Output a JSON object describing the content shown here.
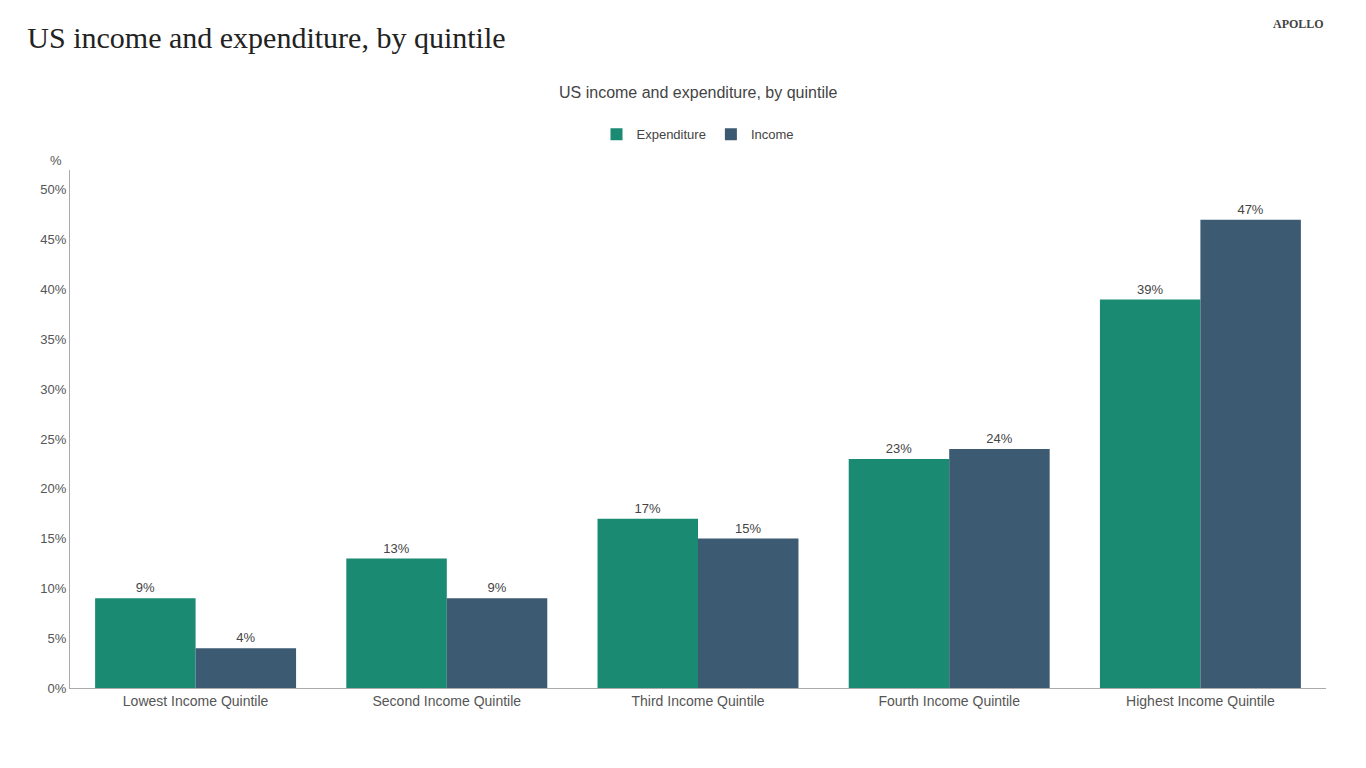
{
  "chart_data": {
    "type": "bar",
    "title": "US income and expenditure, by quintile",
    "subtitle": "US income and expenditure, by quintile",
    "annotations": [
      "APOLLO"
    ],
    "ylabel": "%",
    "categories": [
      "Lowest Income Quintile",
      "Second Income Quintile",
      "Third Income Quintile",
      "Fourth Income Quintile",
      "Highest Income Quintile"
    ],
    "series": [
      {
        "name": "Expenditure",
        "color": "#1a8a72",
        "values": [
          9,
          13,
          17,
          23,
          39
        ],
        "value_labels": [
          "9%",
          "13%",
          "17%",
          "23%",
          "39%"
        ]
      },
      {
        "name": "Income",
        "color": "#3d5a73",
        "values": [
          4,
          9,
          15,
          24,
          47
        ],
        "value_labels": [
          "4%",
          "9%",
          "15%",
          "24%",
          "47%"
        ]
      }
    ],
    "ylim": [
      0,
      52
    ],
    "yticks": [
      {
        "value": 0,
        "label": "0%"
      },
      {
        "value": 5,
        "label": "5%"
      },
      {
        "value": 10,
        "label": "10%"
      },
      {
        "value": 15,
        "label": "15%"
      },
      {
        "value": 20,
        "label": "20%"
      },
      {
        "value": 25,
        "label": "25%"
      },
      {
        "value": 30,
        "label": "30%"
      },
      {
        "value": 35,
        "label": "35%"
      },
      {
        "value": 40,
        "label": "40%"
      },
      {
        "value": 45,
        "label": "45%"
      },
      {
        "value": 50,
        "label": "50%"
      }
    ],
    "grid": false,
    "legend": "top",
    "data_labels": true
  }
}
